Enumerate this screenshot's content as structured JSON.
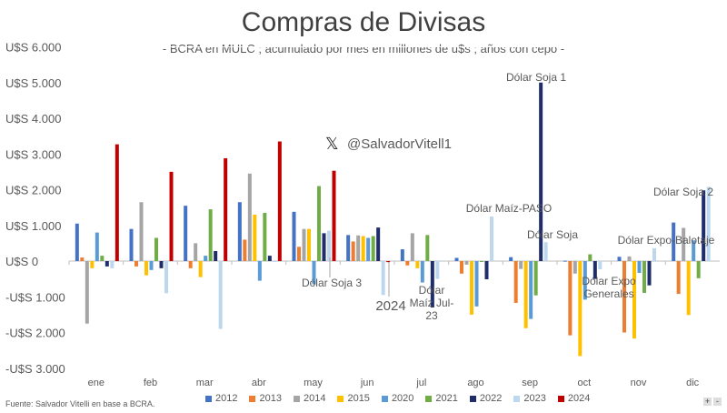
{
  "chart_data": {
    "type": "bar",
    "title": "Compras de Divisas",
    "subtitle": "- BCRA en MULC ; acumulado por mes en millones de u$s ; años con cepo -",
    "categories": [
      "ene",
      "feb",
      "mar",
      "abr",
      "may",
      "jun",
      "jul",
      "ago",
      "sep",
      "oct",
      "nov",
      "dic"
    ],
    "ylim": [
      -3000,
      6000
    ],
    "yticks": [
      6000,
      5000,
      4000,
      3000,
      2000,
      1000,
      0,
      -1000,
      -2000,
      -3000
    ],
    "ytick_labels": [
      "U$S 6.000",
      "U$S 5.000",
      "U$S 4.000",
      "U$S 3.000",
      "U$S 2.000",
      "U$S 1.000",
      "U$S 0",
      "-U$S 1.000",
      "-U$S 2.000",
      "-U$S 3.000"
    ],
    "legend_position": "bottom",
    "series": [
      {
        "name": "2012",
        "color": "#4472C4",
        "values": [
          1050,
          900,
          1550,
          1650,
          1380,
          730,
          330,
          90,
          110,
          10,
          120,
          1080
        ]
      },
      {
        "name": "2013",
        "color": "#ED7D31",
        "values": [
          100,
          -150,
          -200,
          600,
          400,
          550,
          -120,
          -350,
          -1170,
          -2080,
          -2000,
          -920
        ]
      },
      {
        "name": "2014",
        "color": "#A5A5A5",
        "values": [
          -1750,
          1650,
          500,
          2450,
          900,
          720,
          780,
          -100,
          -220,
          -350,
          130,
          930
        ]
      },
      {
        "name": "2015",
        "color": "#FFC000",
        "values": [
          -200,
          -400,
          -450,
          1300,
          900,
          700,
          -200,
          -1500,
          -1880,
          -2660,
          -2170,
          -1510
        ]
      },
      {
        "name": "2020",
        "color": "#5B9BD5",
        "values": [
          800,
          -250,
          150,
          -550,
          -650,
          650,
          -600,
          -1270,
          -1620,
          -1080,
          -330,
          580
        ]
      },
      {
        "name": "2021",
        "color": "#70AD47",
        "values": [
          150,
          650,
          1450,
          1350,
          2100,
          700,
          730,
          0,
          -960,
          190,
          -890,
          -480
        ]
      },
      {
        "name": "2022",
        "color": "#1F2D6B",
        "values": [
          -150,
          -200,
          280,
          150,
          780,
          940,
          -1300,
          -510,
          5000,
          -500,
          -680,
          1980
        ]
      },
      {
        "name": "2023",
        "color": "#BDD7EE",
        "values": [
          -200,
          -900,
          -1900,
          0,
          850,
          -950,
          -500,
          1250,
          530,
          -230,
          360,
          2080
        ]
      },
      {
        "name": "2024",
        "color": "#C00000",
        "values": [
          3270,
          2500,
          2880,
          3350,
          2530,
          -30,
          null,
          null,
          null,
          null,
          null,
          null
        ]
      }
    ],
    "annotations": [
      "Dólar Soja 1",
      "Dólar Maíz-PASO",
      "Dólar Soja",
      "Dólar Soja 2",
      "Dólar Expo-Balotaje",
      "Dólar Soja 3",
      "2024",
      "Dólar Maíz Jul-23",
      "Dólar Expo Generales"
    ]
  },
  "watermark": "@SalvadorVitell1",
  "source": "Fuente:  Salvador Vitelli  en base a BCRA.",
  "zoom_controls": [
    "+",
    "-"
  ]
}
